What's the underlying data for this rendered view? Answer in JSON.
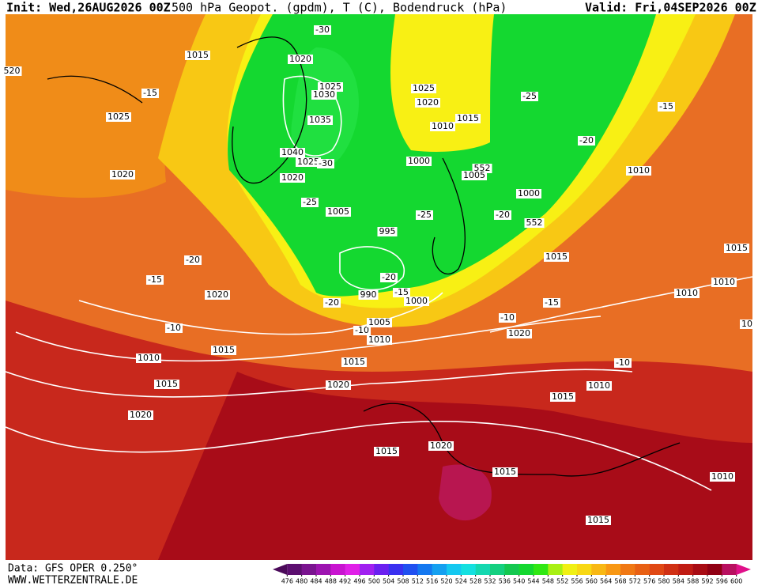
{
  "header": {
    "init": "Init: Wed,26AUG2026 00Z",
    "title": "500 hPa Geopot. (gpdm), T (C), Bodendruck (hPa)",
    "valid": "Valid: Fri,04SEP2026 00Z"
  },
  "footer": {
    "source": "Data: GFS OPER 0.250°",
    "site": "WWW.WETTERZENTRALE.DE"
  },
  "map": {
    "labels": [
      1015,
      1020,
      -30,
      520,
      1025,
      1030,
      -15,
      1025,
      1035,
      1040,
      1025,
      -30,
      1020,
      1020,
      -25,
      1005,
      1025,
      1020,
      1015,
      1010,
      -25,
      -15,
      -20,
      1000,
      552,
      1005,
      1010,
      1000,
      -25,
      -20,
      552,
      995,
      -20,
      1015,
      1015,
      -15,
      -20,
      1010,
      1020,
      -15,
      990,
      1000,
      1010,
      -20,
      -15,
      -10,
      1005,
      -10,
      -10,
      1010,
      1020,
      1015,
      1010,
      1015,
      -10,
      1015,
      1020,
      1010,
      1015,
      1020,
      1020,
      1015,
      1015,
      1010,
      1015,
      10
    ]
  },
  "colorbar": {
    "ticks": [
      476,
      480,
      484,
      488,
      492,
      496,
      500,
      504,
      508,
      512,
      516,
      520,
      524,
      528,
      532,
      536,
      540,
      544,
      548,
      552,
      556,
      560,
      564,
      568,
      572,
      576,
      580,
      584,
      588,
      592,
      596,
      600
    ],
    "colors": [
      "#4b0a5a",
      "#5c0f70",
      "#7a1490",
      "#9c14b0",
      "#c814d0",
      "#e020e8",
      "#a020f0",
      "#6a20f0",
      "#3a30f0",
      "#2050f0",
      "#1478f0",
      "#14a0f0",
      "#14c8f0",
      "#14e0e0",
      "#14d8b0",
      "#14d080",
      "#14c850",
      "#14d830",
      "#30e814",
      "#a8f014",
      "#f0f014",
      "#f8d814",
      "#f8b814",
      "#f89814",
      "#f07814",
      "#e86014",
      "#e04814",
      "#d03014",
      "#c01c14",
      "#a80c14",
      "#900014",
      "#b81060",
      "#e0108a"
    ]
  }
}
